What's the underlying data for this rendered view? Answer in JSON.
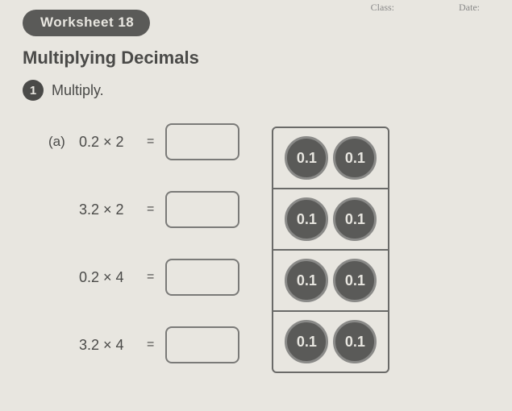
{
  "header": {
    "class_label": "Class:",
    "date_label": "Date:"
  },
  "chip": "Worksheet 18",
  "title": "Multiplying Decimals",
  "section": {
    "number": "1",
    "instruction": "Multiply."
  },
  "problems": [
    {
      "part": "(a)",
      "expr": "0.2 × 2",
      "eq": "="
    },
    {
      "part": "",
      "expr": "3.2 × 2",
      "eq": "="
    },
    {
      "part": "",
      "expr": "0.2 × 4",
      "eq": "="
    },
    {
      "part": "",
      "expr": "3.2 × 4",
      "eq": "="
    }
  ],
  "coin_label": "0.1",
  "grid": {
    "rows": 4,
    "cols": 2
  },
  "colors": {
    "page_bg": "#e8e6e0",
    "dark": "#5a5a58",
    "text": "#4a4a48",
    "border": "#6a6a68"
  }
}
